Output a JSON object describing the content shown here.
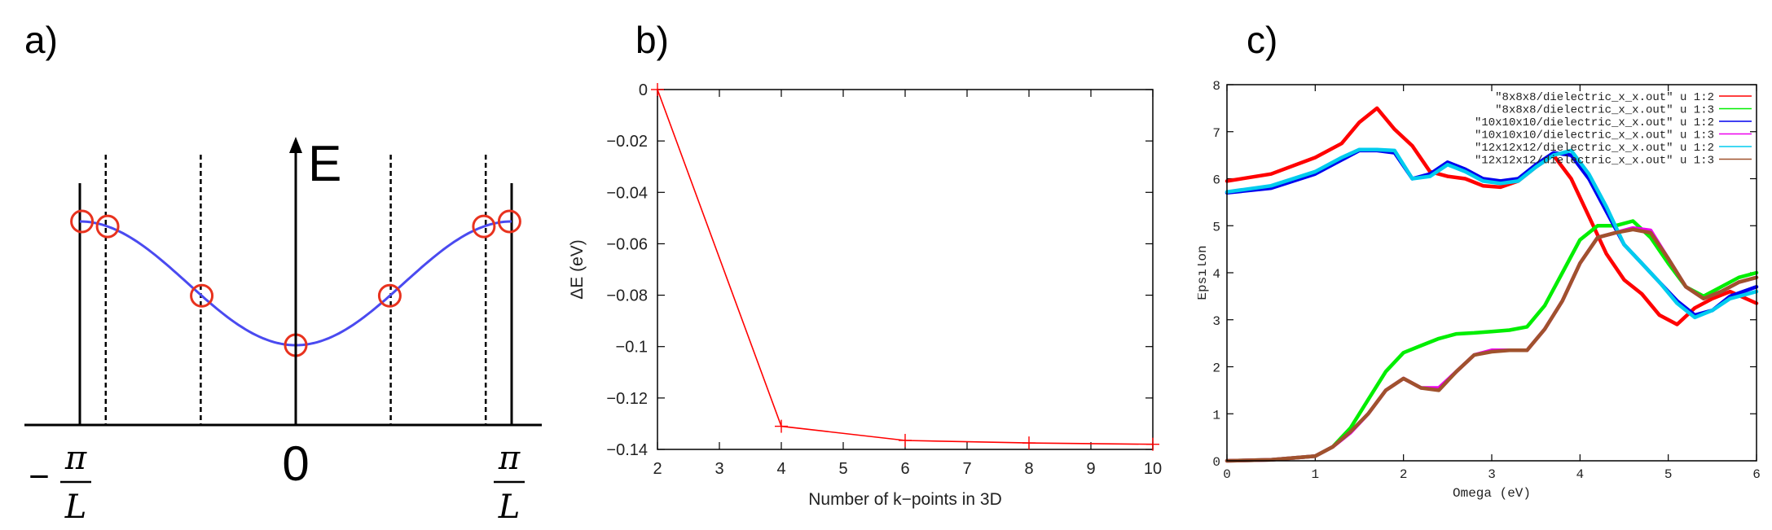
{
  "panels": [
    {
      "letter": "a)"
    },
    {
      "letter": "b)"
    },
    {
      "letter": "c)"
    }
  ],
  "panel_a": {
    "energy_label": "E",
    "zero_label": "0",
    "left_label_sign": "−",
    "left_label_num": "π",
    "left_label_den": "L",
    "right_label_num": "π",
    "right_label_den": "L",
    "curve_color": "#4a4af0",
    "marker_color": "#e8321e"
  },
  "chart_data": [
    {
      "type": "line",
      "panel": "b)",
      "xlabel": "Number of k−points in 3D",
      "ylabel": "ΔE (eV)",
      "xlim": [
        2,
        10
      ],
      "ylim": [
        -0.14,
        0
      ],
      "xticks": [
        2,
        3,
        4,
        5,
        6,
        7,
        8,
        9,
        10
      ],
      "yticks": [
        0,
        -0.02,
        -0.04,
        -0.06,
        -0.08,
        -0.1,
        -0.12,
        -0.14
      ],
      "ytick_labels": [
        "0",
        "−0.02",
        "−0.04",
        "−0.06",
        "−0.08",
        "−0.1",
        "−0.12",
        "−0.14"
      ],
      "grid": false,
      "series": [
        {
          "color": "#ff0000",
          "x": [
            2,
            4,
            6,
            8,
            10
          ],
          "y": [
            0,
            -0.131,
            -0.1365,
            -0.1375,
            -0.138
          ]
        }
      ]
    },
    {
      "type": "line",
      "panel": "c)",
      "xlabel": "Omega (eV)",
      "ylabel": "Epsilon",
      "xlim": [
        0,
        6
      ],
      "ylim": [
        0,
        8
      ],
      "xticks": [
        0,
        1,
        2,
        3,
        4,
        5,
        6
      ],
      "yticks": [
        0,
        1,
        2,
        3,
        4,
        5,
        6,
        7,
        8
      ],
      "grid": false,
      "legend": "top-right",
      "series": [
        {
          "name": "\"8x8x8/dielectric_x_x.out\" u 1:2",
          "color": "#ff0000",
          "x": [
            0,
            0.5,
            1.0,
            1.3,
            1.5,
            1.7,
            1.9,
            2.1,
            2.3,
            2.5,
            2.7,
            2.9,
            3.1,
            3.3,
            3.5,
            3.7,
            3.9,
            4.1,
            4.3,
            4.5,
            4.7,
            4.9,
            5.1,
            5.3,
            5.5,
            5.7,
            6.0
          ],
          "y": [
            5.95,
            6.1,
            6.45,
            6.75,
            7.2,
            7.5,
            7.05,
            6.7,
            6.15,
            6.05,
            6.0,
            5.85,
            5.82,
            5.95,
            6.25,
            6.5,
            6.0,
            5.2,
            4.4,
            3.85,
            3.55,
            3.1,
            2.9,
            3.25,
            3.45,
            3.6,
            3.35
          ]
        },
        {
          "name": "\"8x8x8/dielectric_x_x.out\" u 1:3",
          "color": "#00ee00",
          "x": [
            0,
            0.5,
            1.0,
            1.2,
            1.4,
            1.6,
            1.8,
            2.0,
            2.2,
            2.4,
            2.6,
            2.8,
            3.0,
            3.2,
            3.4,
            3.6,
            3.8,
            4.0,
            4.2,
            4.4,
            4.6,
            4.8,
            5.0,
            5.2,
            5.4,
            5.6,
            5.8,
            6.0
          ],
          "y": [
            0,
            0.02,
            0.1,
            0.3,
            0.7,
            1.3,
            1.9,
            2.3,
            2.45,
            2.6,
            2.7,
            2.72,
            2.75,
            2.78,
            2.85,
            3.3,
            4.0,
            4.7,
            5.0,
            5.0,
            5.1,
            4.75,
            4.2,
            3.7,
            3.5,
            3.7,
            3.9,
            4.0
          ]
        },
        {
          "name": "\"10x10x10/dielectric_x_x.out\" u 1:2",
          "color": "#0000ee",
          "x": [
            0,
            0.5,
            1.0,
            1.3,
            1.5,
            1.7,
            1.9,
            2.1,
            2.3,
            2.5,
            2.7,
            2.9,
            3.1,
            3.3,
            3.5,
            3.7,
            3.9,
            4.1,
            4.3,
            4.5,
            4.7,
            4.9,
            5.1,
            5.3,
            5.5,
            5.7,
            6.0
          ],
          "y": [
            5.7,
            5.8,
            6.1,
            6.4,
            6.6,
            6.6,
            6.55,
            6.0,
            6.1,
            6.35,
            6.2,
            6.0,
            5.95,
            6.0,
            6.3,
            6.55,
            6.5,
            6.0,
            5.3,
            4.6,
            4.2,
            3.8,
            3.4,
            3.1,
            3.2,
            3.5,
            3.7
          ]
        },
        {
          "name": "\"10x10x10/dielectric_x_x.out\" u 1:3",
          "color": "#ee00ee",
          "x": [
            0,
            0.5,
            1.0,
            1.2,
            1.4,
            1.6,
            1.8,
            2.0,
            2.2,
            2.4,
            2.6,
            2.8,
            3.0,
            3.2,
            3.4,
            3.6,
            3.8,
            4.0,
            4.2,
            4.4,
            4.6,
            4.8,
            5.0,
            5.2,
            5.4,
            5.6,
            5.8,
            6.0
          ],
          "y": [
            0,
            0.02,
            0.1,
            0.3,
            0.6,
            1.0,
            1.5,
            1.75,
            1.55,
            1.55,
            1.9,
            2.25,
            2.35,
            2.35,
            2.35,
            2.8,
            3.4,
            4.2,
            4.75,
            4.85,
            4.95,
            4.9,
            4.3,
            3.7,
            3.45,
            3.6,
            3.8,
            3.9
          ]
        },
        {
          "name": "\"12x12x12/dielectric_x_x.out\" u 1:2",
          "color": "#00ccee",
          "x": [
            0,
            0.5,
            1.0,
            1.3,
            1.5,
            1.7,
            1.9,
            2.1,
            2.3,
            2.5,
            2.7,
            2.9,
            3.1,
            3.3,
            3.5,
            3.7,
            3.9,
            4.1,
            4.3,
            4.5,
            4.7,
            4.9,
            5.1,
            5.3,
            5.5,
            5.7,
            6.0
          ],
          "y": [
            5.72,
            5.85,
            6.15,
            6.45,
            6.62,
            6.62,
            6.6,
            6.0,
            6.05,
            6.3,
            6.15,
            5.95,
            5.9,
            5.95,
            6.25,
            6.5,
            6.6,
            6.1,
            5.4,
            4.6,
            4.2,
            3.8,
            3.35,
            3.05,
            3.2,
            3.45,
            3.6
          ]
        },
        {
          "name": "\"12x12x12/dielectric_x_x.out\" u 1:3",
          "color": "#a0522d",
          "x": [
            0,
            0.5,
            1.0,
            1.2,
            1.4,
            1.6,
            1.8,
            2.0,
            2.2,
            2.4,
            2.6,
            2.8,
            3.0,
            3.2,
            3.4,
            3.6,
            3.8,
            4.0,
            4.2,
            4.4,
            4.6,
            4.8,
            5.0,
            5.2,
            5.4,
            5.6,
            5.8,
            6.0
          ],
          "y": [
            0,
            0.02,
            0.1,
            0.3,
            0.62,
            1.0,
            1.5,
            1.75,
            1.55,
            1.5,
            1.9,
            2.25,
            2.32,
            2.35,
            2.35,
            2.8,
            3.4,
            4.2,
            4.75,
            4.85,
            4.92,
            4.85,
            4.3,
            3.7,
            3.45,
            3.6,
            3.8,
            3.9
          ]
        }
      ]
    }
  ]
}
